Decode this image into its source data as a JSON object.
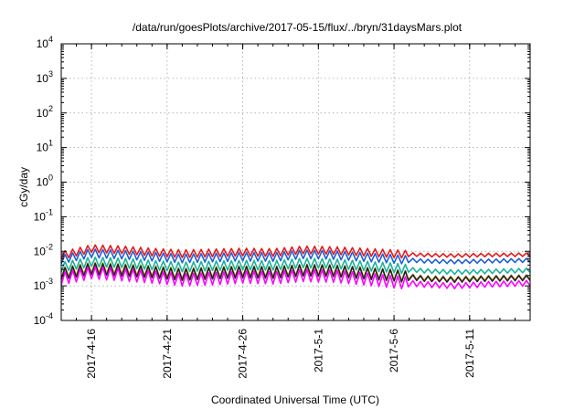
{
  "chart_data": {
    "type": "line",
    "title": "/data/run/goesPlots/archive/2017-05-15/flux/../bryn/31daysMars.plot",
    "xlabel": "Coordinated Universal Time (UTC)",
    "ylabel": "cGy/day",
    "yscale": "log",
    "ylim": [
      0.0001,
      10000
    ],
    "xlim": [
      "2017-04-14",
      "2017-05-15"
    ],
    "grid": true,
    "y_ticks": [
      {
        "base": "10",
        "exp": "-4",
        "value": 0.0001
      },
      {
        "base": "10",
        "exp": "-3",
        "value": 0.001
      },
      {
        "base": "10",
        "exp": "-2",
        "value": 0.01
      },
      {
        "base": "10",
        "exp": "-1",
        "value": 0.1
      },
      {
        "base": "10",
        "exp": "0",
        "value": 1
      },
      {
        "base": "10",
        "exp": "1",
        "value": 10
      },
      {
        "base": "10",
        "exp": "2",
        "value": 100
      },
      {
        "base": "10",
        "exp": "3",
        "value": 1000
      },
      {
        "base": "10",
        "exp": "4",
        "value": 10000
      }
    ],
    "x_ticks": [
      {
        "label": "2017-4-16",
        "date": "2017-04-16"
      },
      {
        "label": "2017-4-21",
        "date": "2017-04-21"
      },
      {
        "label": "2017-4-26",
        "date": "2017-04-26"
      },
      {
        "label": "2017-5-1",
        "date": "2017-05-01"
      },
      {
        "label": "2017-5-6",
        "date": "2017-05-06"
      },
      {
        "label": "2017-5-11",
        "date": "2017-05-11"
      }
    ],
    "series": [
      {
        "color": "#e41a1c",
        "points": [
          [
            "2017-04-14",
            0.0075
          ],
          [
            "2017-04-16",
            0.012
          ],
          [
            "2017-04-18",
            0.011
          ],
          [
            "2017-04-20",
            0.0095
          ],
          [
            "2017-04-22",
            0.0085
          ],
          [
            "2017-04-24",
            0.009
          ],
          [
            "2017-04-26",
            0.0095
          ],
          [
            "2017-04-28",
            0.0092
          ],
          [
            "2017-04-30",
            0.011
          ],
          [
            "2017-05-02",
            0.0105
          ],
          [
            "2017-05-04",
            0.0095
          ],
          [
            "2017-05-06",
            0.0085
          ],
          [
            "2017-05-08",
            0.0078
          ],
          [
            "2017-05-10",
            0.0075
          ],
          [
            "2017-05-12",
            0.0078
          ],
          [
            "2017-05-15",
            0.008
          ]
        ]
      },
      {
        "color": "#1f5fd6",
        "points": [
          [
            "2017-04-14",
            0.0058
          ],
          [
            "2017-04-16",
            0.0088
          ],
          [
            "2017-04-18",
            0.008
          ],
          [
            "2017-04-20",
            0.007
          ],
          [
            "2017-04-22",
            0.0062
          ],
          [
            "2017-04-24",
            0.0066
          ],
          [
            "2017-04-26",
            0.007
          ],
          [
            "2017-04-28",
            0.0068
          ],
          [
            "2017-04-30",
            0.0082
          ],
          [
            "2017-05-02",
            0.0078
          ],
          [
            "2017-05-04",
            0.0068
          ],
          [
            "2017-05-06",
            0.006
          ],
          [
            "2017-05-08",
            0.0052
          ],
          [
            "2017-05-10",
            0.005
          ],
          [
            "2017-05-12",
            0.0052
          ],
          [
            "2017-05-15",
            0.0055
          ]
        ]
      },
      {
        "color": "#17b39b",
        "points": [
          [
            "2017-04-14",
            0.0035
          ],
          [
            "2017-04-16",
            0.005
          ],
          [
            "2017-04-18",
            0.0046
          ],
          [
            "2017-04-20",
            0.004
          ],
          [
            "2017-04-22",
            0.0035
          ],
          [
            "2017-04-24",
            0.0038
          ],
          [
            "2017-04-26",
            0.004
          ],
          [
            "2017-04-28",
            0.0039
          ],
          [
            "2017-04-30",
            0.0046
          ],
          [
            "2017-05-02",
            0.0044
          ],
          [
            "2017-05-04",
            0.0038
          ],
          [
            "2017-05-06",
            0.0033
          ],
          [
            "2017-05-08",
            0.0027
          ],
          [
            "2017-05-10",
            0.0025
          ],
          [
            "2017-05-12",
            0.0026
          ],
          [
            "2017-05-15",
            0.0028
          ]
        ]
      },
      {
        "color": "#d4a02a",
        "points": [
          [
            "2017-04-14",
            0.0024
          ],
          [
            "2017-04-16",
            0.0034
          ],
          [
            "2017-04-18",
            0.0031
          ],
          [
            "2017-04-20",
            0.0027
          ],
          [
            "2017-04-22",
            0.0023
          ],
          [
            "2017-04-24",
            0.0025
          ],
          [
            "2017-04-26",
            0.0027
          ],
          [
            "2017-04-28",
            0.0026
          ],
          [
            "2017-04-30",
            0.003
          ],
          [
            "2017-05-02",
            0.0029
          ],
          [
            "2017-05-04",
            0.0025
          ],
          [
            "2017-05-06",
            0.0021
          ],
          [
            "2017-05-08",
            0.0017
          ],
          [
            "2017-05-10",
            0.0016
          ],
          [
            "2017-05-12",
            0.0017
          ],
          [
            "2017-05-15",
            0.0018
          ]
        ]
      },
      {
        "color": "#222222",
        "points": [
          [
            "2017-04-14",
            0.0022
          ],
          [
            "2017-04-16",
            0.0031
          ],
          [
            "2017-04-18",
            0.0028
          ],
          [
            "2017-04-20",
            0.0025
          ],
          [
            "2017-04-22",
            0.0021
          ],
          [
            "2017-04-24",
            0.0023
          ],
          [
            "2017-04-26",
            0.0025
          ],
          [
            "2017-04-28",
            0.0024
          ],
          [
            "2017-04-30",
            0.0028
          ],
          [
            "2017-05-02",
            0.0027
          ],
          [
            "2017-05-04",
            0.0023
          ],
          [
            "2017-05-06",
            0.002
          ],
          [
            "2017-05-08",
            0.0016
          ],
          [
            "2017-05-10",
            0.0015
          ],
          [
            "2017-05-12",
            0.0016
          ],
          [
            "2017-05-15",
            0.0017
          ]
        ]
      },
      {
        "color": "#ff00ff",
        "points": [
          [
            "2017-04-14",
            0.0016
          ],
          [
            "2017-04-16",
            0.0024
          ],
          [
            "2017-04-18",
            0.0021
          ],
          [
            "2017-04-20",
            0.0018
          ],
          [
            "2017-04-22",
            0.0015
          ],
          [
            "2017-04-24",
            0.0016
          ],
          [
            "2017-04-26",
            0.0018
          ],
          [
            "2017-04-28",
            0.0017
          ],
          [
            "2017-04-30",
            0.002
          ],
          [
            "2017-05-02",
            0.0019
          ],
          [
            "2017-05-04",
            0.0016
          ],
          [
            "2017-05-06",
            0.0013
          ],
          [
            "2017-05-08",
            0.0011
          ],
          [
            "2017-05-10",
            0.001
          ],
          [
            "2017-05-12",
            0.0011
          ],
          [
            "2017-05-15",
            0.0012
          ]
        ]
      }
    ]
  }
}
